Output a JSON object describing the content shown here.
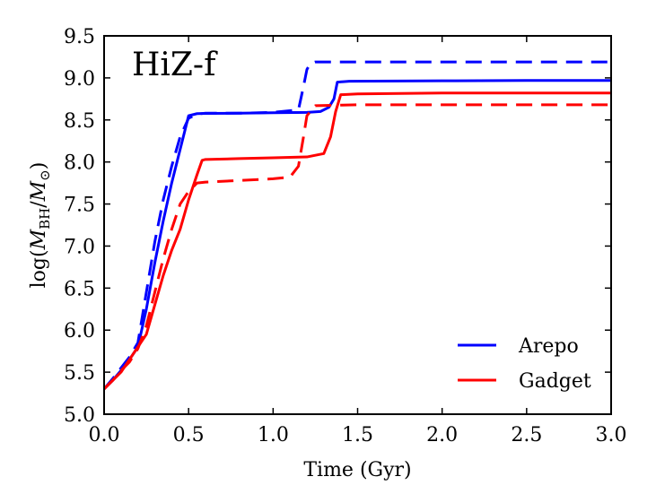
{
  "chart_data": {
    "type": "line",
    "title": "HiZ-f",
    "xlabel": "Time (Gyr)",
    "ylabel_parts": {
      "pre": "log(",
      "m": "M",
      "sub": "BH",
      "mid": "/",
      "m2": "M",
      "sun": "⊙",
      "post": ")"
    },
    "xlim": [
      0.0,
      3.0
    ],
    "ylim": [
      5.0,
      9.5
    ],
    "xticks": [
      0.0,
      0.5,
      1.0,
      1.5,
      2.0,
      2.5,
      3.0
    ],
    "xtick_labels": [
      "0.0",
      "0.5",
      "1.0",
      "1.5",
      "2.0",
      "2.5",
      "3.0"
    ],
    "yticks": [
      5.0,
      5.5,
      6.0,
      6.5,
      7.0,
      7.5,
      8.0,
      8.5,
      9.0,
      9.5
    ],
    "ytick_labels": [
      "5.0",
      "5.5",
      "6.0",
      "6.5",
      "7.0",
      "7.5",
      "8.0",
      "8.5",
      "9.0",
      "9.5"
    ],
    "legend": {
      "placement": "lower-right",
      "entries": [
        {
          "label": "Arepo",
          "color": "#0000ff"
        },
        {
          "label": "Gadget",
          "color": "#ff0000"
        }
      ]
    },
    "series": [
      {
        "name": "Arepo (solid)",
        "color": "#0000ff",
        "dash": "solid",
        "x": [
          0.0,
          0.05,
          0.1,
          0.15,
          0.2,
          0.25,
          0.3,
          0.35,
          0.4,
          0.45,
          0.5,
          0.55,
          0.6,
          0.8,
          1.0,
          1.2,
          1.28,
          1.33,
          1.36,
          1.38,
          1.45,
          2.0,
          2.5,
          3.0
        ],
        "y": [
          5.3,
          5.4,
          5.52,
          5.65,
          5.8,
          6.25,
          6.8,
          7.3,
          7.75,
          8.15,
          8.55,
          8.575,
          8.578,
          8.58,
          8.585,
          8.59,
          8.6,
          8.65,
          8.75,
          8.95,
          8.96,
          8.965,
          8.97,
          8.97
        ]
      },
      {
        "name": "Arepo (dashed)",
        "color": "#0000ff",
        "dash": "dashed",
        "x": [
          0.0,
          0.05,
          0.1,
          0.15,
          0.2,
          0.25,
          0.3,
          0.35,
          0.4,
          0.45,
          0.5,
          0.55,
          0.6,
          0.8,
          1.0,
          1.15,
          1.18,
          1.2,
          1.22,
          1.25,
          1.5,
          2.0,
          2.5,
          3.0
        ],
        "y": [
          5.3,
          5.42,
          5.55,
          5.68,
          5.85,
          6.45,
          7.05,
          7.55,
          7.95,
          8.3,
          8.52,
          8.57,
          8.58,
          8.58,
          8.59,
          8.62,
          8.9,
          9.1,
          9.17,
          9.19,
          9.19,
          9.19,
          9.19,
          9.19
        ]
      },
      {
        "name": "Gadget (solid)",
        "color": "#ff0000",
        "dash": "solid",
        "x": [
          0.0,
          0.05,
          0.1,
          0.15,
          0.2,
          0.25,
          0.3,
          0.35,
          0.4,
          0.45,
          0.5,
          0.55,
          0.58,
          0.6,
          0.8,
          1.0,
          1.2,
          1.3,
          1.34,
          1.37,
          1.4,
          1.5,
          2.0,
          2.5,
          3.0
        ],
        "y": [
          5.3,
          5.4,
          5.5,
          5.65,
          5.8,
          5.95,
          6.3,
          6.65,
          6.95,
          7.2,
          7.55,
          7.85,
          8.02,
          8.03,
          8.04,
          8.05,
          8.06,
          8.1,
          8.3,
          8.6,
          8.8,
          8.81,
          8.82,
          8.82,
          8.82
        ]
      },
      {
        "name": "Gadget (dashed)",
        "color": "#ff0000",
        "dash": "dashed",
        "x": [
          0.0,
          0.05,
          0.1,
          0.15,
          0.2,
          0.25,
          0.3,
          0.35,
          0.4,
          0.45,
          0.5,
          0.55,
          0.6,
          0.8,
          1.0,
          1.1,
          1.15,
          1.18,
          1.2,
          1.25,
          1.5,
          2.0,
          2.5,
          3.0
        ],
        "y": [
          5.3,
          5.4,
          5.52,
          5.62,
          5.78,
          6.05,
          6.45,
          6.85,
          7.2,
          7.5,
          7.65,
          7.75,
          7.76,
          7.78,
          7.8,
          7.82,
          7.95,
          8.3,
          8.55,
          8.67,
          8.68,
          8.68,
          8.68,
          8.68
        ]
      }
    ]
  }
}
